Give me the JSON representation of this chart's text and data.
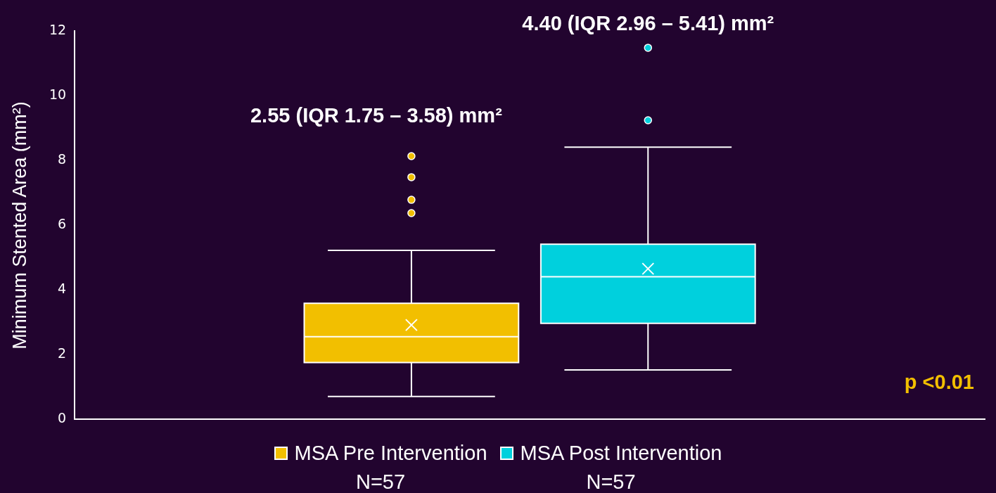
{
  "chart_data": {
    "type": "box",
    "ylabel": "Minimum Stented Area (mm²)",
    "categories": [
      null
    ],
    "ylim": [
      0,
      12
    ],
    "yticks": [
      0,
      2,
      4,
      6,
      8,
      10,
      12
    ],
    "grid": false,
    "legend": "bottom",
    "tick_labels": "y",
    "series": [
      {
        "name": "MSA Pre Intervention",
        "color": "#f2bf00",
        "boxes": [
          {
            "low": 0.7,
            "q1": 1.75,
            "median": 2.55,
            "q3": 3.58,
            "high": 5.22,
            "mean": 2.91,
            "outliers": [
              6.37,
              6.78,
              7.48,
              8.13
            ]
          }
        ]
      },
      {
        "name": "MSA Post Intervention",
        "color": "#00d0dd",
        "boxes": [
          {
            "low": 1.52,
            "q1": 2.96,
            "median": 4.4,
            "q3": 5.41,
            "high": 8.41,
            "mean": 4.65,
            "outliers": [
              9.24,
              11.48
            ]
          }
        ]
      }
    ],
    "annotations": [
      "2.55 (IQR 1.75 – 3.58) mm²",
      "4.40 (IQR 2.96 – 5.41) mm²",
      "N=57",
      "N=57",
      "p <0.01"
    ]
  }
}
